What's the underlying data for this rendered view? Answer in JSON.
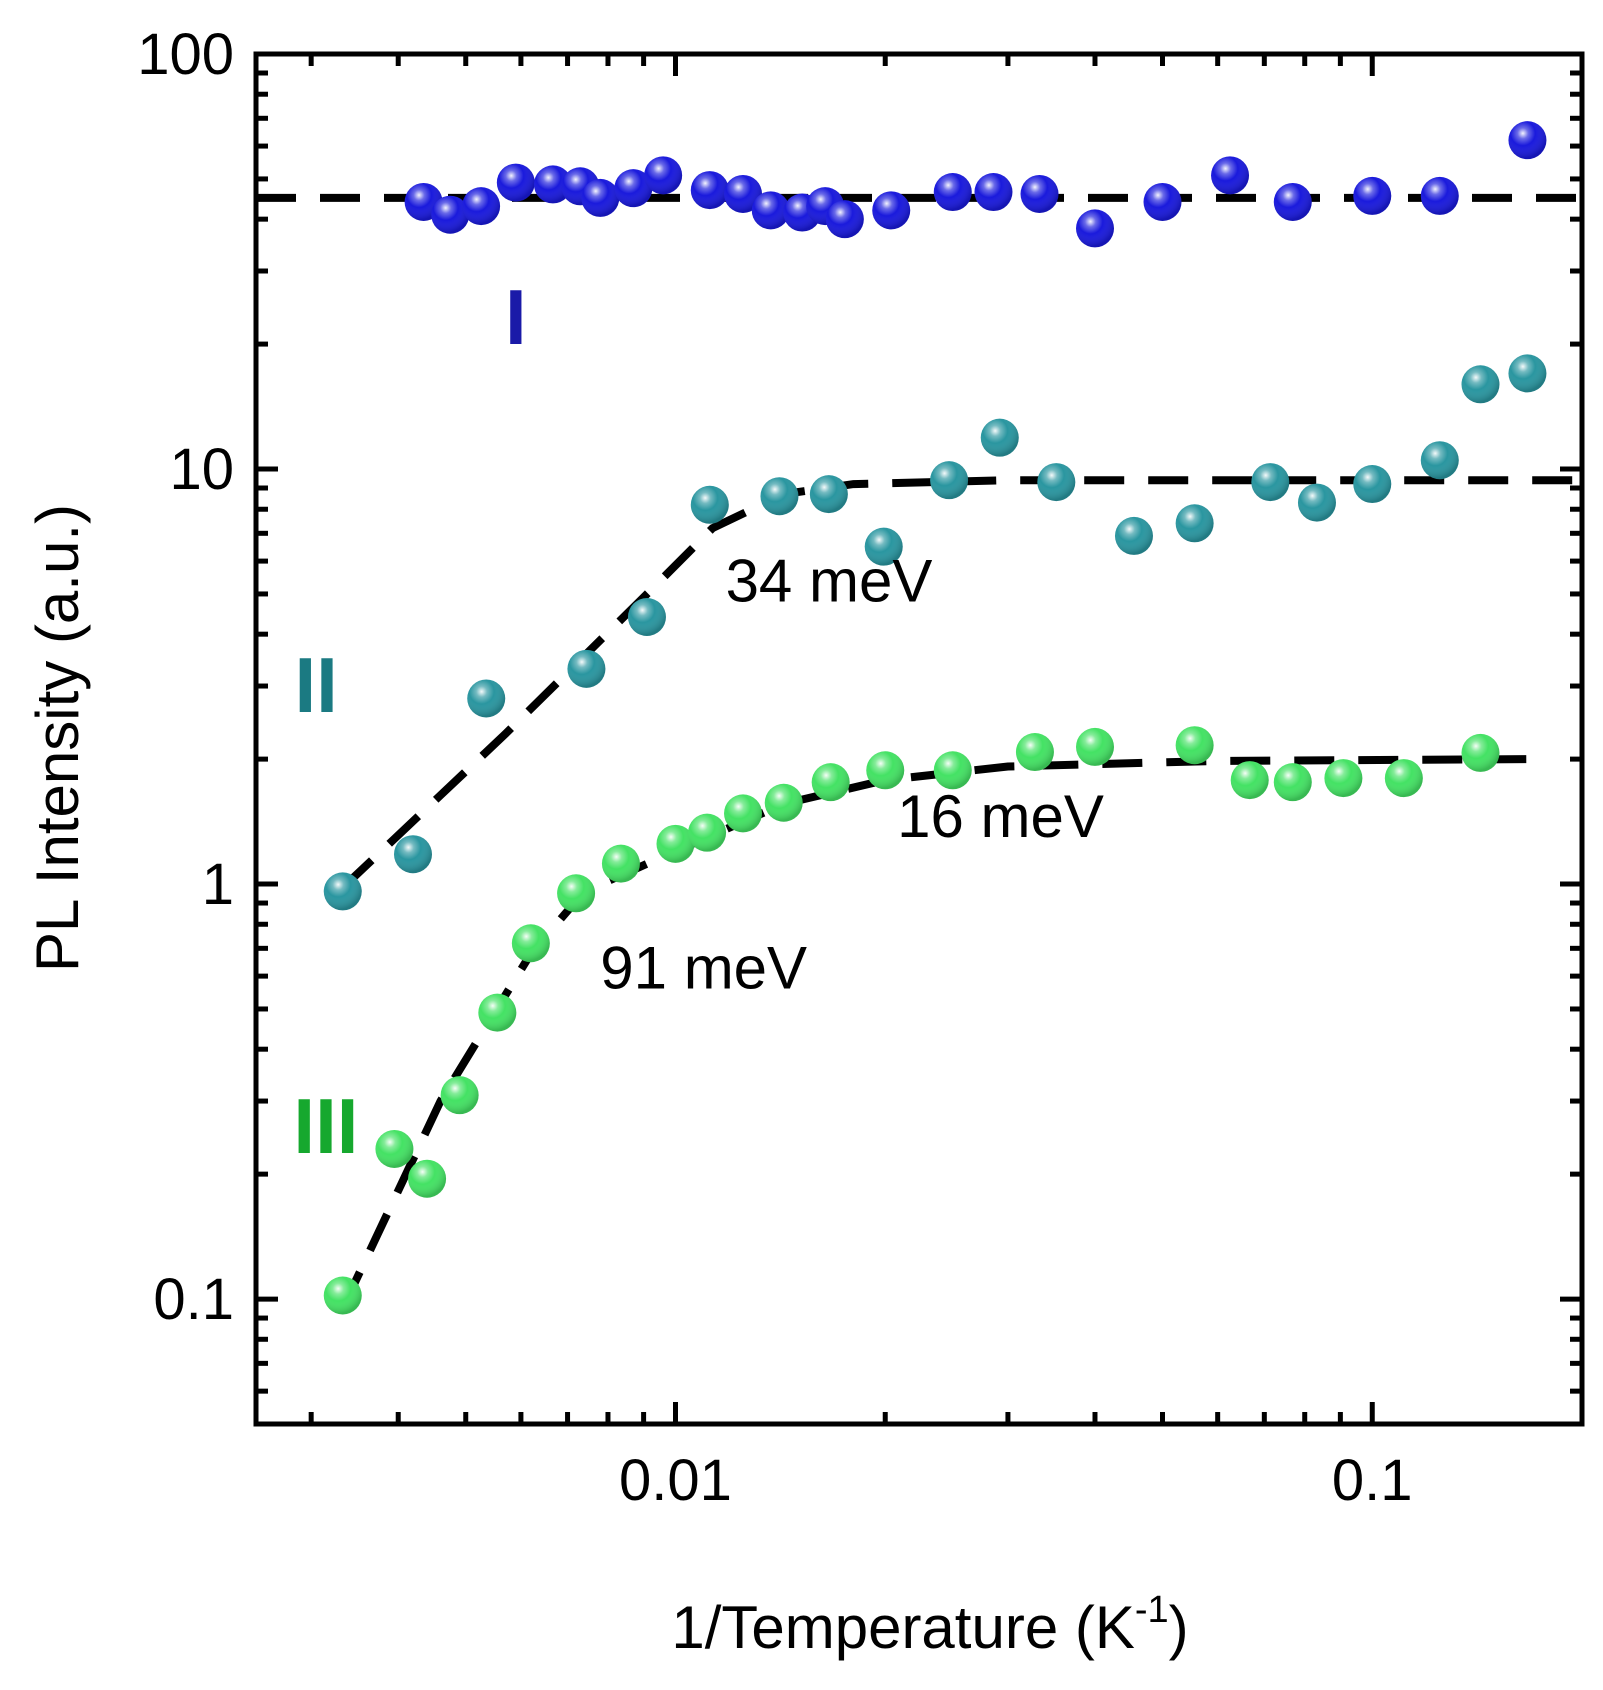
{
  "chart_data": {
    "type": "scatter",
    "title": "",
    "xlabel": "1/Temperature (K",
    "xlabel_sup": "-1",
    "xlabel_close": ")",
    "ylabel": "PL Intensity (a.u.)",
    "xscale": "log",
    "yscale": "log",
    "xlim": [
      0.0025,
      0.2
    ],
    "ylim": [
      0.05,
      100
    ],
    "x_tick_labels": [
      {
        "value": 0.01,
        "label": "0.01"
      },
      {
        "value": 0.1,
        "label": "0.1"
      }
    ],
    "y_tick_labels": [
      {
        "value": 0.1,
        "label": "0.1"
      },
      {
        "value": 1,
        "label": "1"
      },
      {
        "value": 10,
        "label": "10"
      },
      {
        "value": 100,
        "label": "100"
      }
    ],
    "series": [
      {
        "name": "I",
        "color": "#1a1adc",
        "label_color": "#1a1aa8",
        "label_pos": {
          "x": 0.0059,
          "y": 20
        },
        "points": [
          {
            "x": 0.00435,
            "y": 44
          },
          {
            "x": 0.00475,
            "y": 41
          },
          {
            "x": 0.00526,
            "y": 43
          },
          {
            "x": 0.0059,
            "y": 49
          },
          {
            "x": 0.00667,
            "y": 48.5
          },
          {
            "x": 0.0073,
            "y": 48
          },
          {
            "x": 0.0078,
            "y": 45
          },
          {
            "x": 0.0087,
            "y": 47.5
          },
          {
            "x": 0.0096,
            "y": 51
          },
          {
            "x": 0.0112,
            "y": 47
          },
          {
            "x": 0.0125,
            "y": 46
          },
          {
            "x": 0.0137,
            "y": 42
          },
          {
            "x": 0.0152,
            "y": 41.5
          },
          {
            "x": 0.0164,
            "y": 43
          },
          {
            "x": 0.0175,
            "y": 40
          },
          {
            "x": 0.0204,
            "y": 42
          },
          {
            "x": 0.025,
            "y": 46.5
          },
          {
            "x": 0.0286,
            "y": 46.5
          },
          {
            "x": 0.0333,
            "y": 46
          },
          {
            "x": 0.04,
            "y": 38
          },
          {
            "x": 0.05,
            "y": 44
          },
          {
            "x": 0.0625,
            "y": 51
          },
          {
            "x": 0.0769,
            "y": 44
          },
          {
            "x": 0.1,
            "y": 45.5
          },
          {
            "x": 0.125,
            "y": 45.5
          },
          {
            "x": 0.167,
            "y": 62
          }
        ]
      },
      {
        "name": "II",
        "color": "#2a96a0",
        "label_color": "#1b7a82",
        "label_pos": {
          "x": 0.00305,
          "y": 2.6
        },
        "points": [
          {
            "x": 0.00333,
            "y": 0.96
          },
          {
            "x": 0.0042,
            "y": 1.18
          },
          {
            "x": 0.00535,
            "y": 2.8
          },
          {
            "x": 0.00745,
            "y": 3.3
          },
          {
            "x": 0.0091,
            "y": 4.4
          },
          {
            "x": 0.0112,
            "y": 8.2
          },
          {
            "x": 0.0141,
            "y": 8.6
          },
          {
            "x": 0.0166,
            "y": 8.7
          },
          {
            "x": 0.0199,
            "y": 6.5
          },
          {
            "x": 0.0247,
            "y": 9.4
          },
          {
            "x": 0.0292,
            "y": 11.9
          },
          {
            "x": 0.0352,
            "y": 9.3
          },
          {
            "x": 0.0455,
            "y": 6.9
          },
          {
            "x": 0.0556,
            "y": 7.4
          },
          {
            "x": 0.0714,
            "y": 9.3
          },
          {
            "x": 0.0833,
            "y": 8.3
          },
          {
            "x": 0.1,
            "y": 9.2
          },
          {
            "x": 0.125,
            "y": 10.5
          },
          {
            "x": 0.143,
            "y": 16
          },
          {
            "x": 0.167,
            "y": 17
          }
        ]
      },
      {
        "name": "III",
        "color": "#44e264",
        "label_color": "#16a82e",
        "label_pos": {
          "x": 0.00315,
          "y": 0.225
        },
        "points": [
          {
            "x": 0.00333,
            "y": 0.102
          },
          {
            "x": 0.00395,
            "y": 0.23
          },
          {
            "x": 0.0044,
            "y": 0.195
          },
          {
            "x": 0.0049,
            "y": 0.31
          },
          {
            "x": 0.00555,
            "y": 0.49
          },
          {
            "x": 0.0062,
            "y": 0.72
          },
          {
            "x": 0.0072,
            "y": 0.95
          },
          {
            "x": 0.00835,
            "y": 1.12
          },
          {
            "x": 0.01,
            "y": 1.25
          },
          {
            "x": 0.0111,
            "y": 1.33
          },
          {
            "x": 0.0125,
            "y": 1.48
          },
          {
            "x": 0.0143,
            "y": 1.57
          },
          {
            "x": 0.0167,
            "y": 1.76
          },
          {
            "x": 0.02,
            "y": 1.88
          },
          {
            "x": 0.025,
            "y": 1.88
          },
          {
            "x": 0.0328,
            "y": 2.08
          },
          {
            "x": 0.04,
            "y": 2.14
          },
          {
            "x": 0.0556,
            "y": 2.16
          },
          {
            "x": 0.0667,
            "y": 1.78
          },
          {
            "x": 0.0769,
            "y": 1.76
          },
          {
            "x": 0.0909,
            "y": 1.8
          },
          {
            "x": 0.111,
            "y": 1.8
          },
          {
            "x": 0.143,
            "y": 2.07
          }
        ]
      }
    ],
    "fits": [
      {
        "name": "fit-I",
        "points": [
          [
            0.0025,
            45
          ],
          [
            0.2,
            45
          ]
        ]
      },
      {
        "name": "fit-II",
        "points": [
          [
            0.00333,
            0.98
          ],
          [
            0.0057,
            2.3
          ],
          [
            0.0091,
            5.0
          ],
          [
            0.0113,
            7.2
          ],
          [
            0.0143,
            8.7
          ],
          [
            0.018,
            9.2
          ],
          [
            0.03,
            9.4
          ],
          [
            0.2,
            9.4
          ]
        ]
      },
      {
        "name": "fit-III",
        "points": [
          [
            0.00333,
            0.095
          ],
          [
            0.0046,
            0.3
          ],
          [
            0.0062,
            0.68
          ],
          [
            0.0074,
            0.96
          ],
          [
            0.01,
            1.2
          ],
          [
            0.0143,
            1.56
          ],
          [
            0.02,
            1.78
          ],
          [
            0.03,
            1.92
          ],
          [
            0.06,
            1.98
          ],
          [
            0.167,
            2.0
          ]
        ]
      }
    ],
    "annotations": [
      {
        "text": "34 meV",
        "x": 0.0118,
        "y": 4.8
      },
      {
        "text": "16 meV",
        "x": 0.0208,
        "y": 1.3
      },
      {
        "text": "91 meV",
        "x": 0.0078,
        "y": 0.56
      }
    ]
  }
}
